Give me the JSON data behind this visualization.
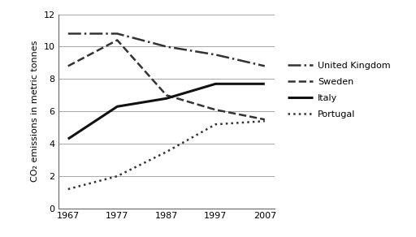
{
  "years": [
    1967,
    1977,
    1987,
    1997,
    2007
  ],
  "series": {
    "United Kingdom": {
      "values": [
        10.8,
        10.8,
        10.0,
        9.5,
        8.8
      ],
      "linestyle": "-.",
      "linewidth": 1.8,
      "color": "#333333"
    },
    "Sweden": {
      "values": [
        8.8,
        10.4,
        7.0,
        6.1,
        5.5
      ],
      "linestyle": "--",
      "linewidth": 1.8,
      "color": "#333333"
    },
    "Italy": {
      "values": [
        4.3,
        6.3,
        6.8,
        7.7,
        7.7
      ],
      "linestyle": "-",
      "linewidth": 2.2,
      "color": "#111111"
    },
    "Portugal": {
      "values": [
        1.2,
        2.0,
        3.5,
        5.2,
        5.4
      ],
      "linestyle": ":",
      "linewidth": 1.8,
      "color": "#333333"
    }
  },
  "ylabel": "CO₂ emissions in metric tonnes",
  "ylim": [
    0,
    12
  ],
  "yticks": [
    0,
    2,
    4,
    6,
    8,
    10,
    12
  ],
  "xticks": [
    1967,
    1977,
    1987,
    1997,
    2007
  ],
  "grid_color": "#999999",
  "background_color": "#ffffff",
  "legend_order": [
    "United Kingdom",
    "Sweden",
    "Italy",
    "Portugal"
  ],
  "figsize": [
    5.12,
    2.92
  ],
  "dpi": 100
}
